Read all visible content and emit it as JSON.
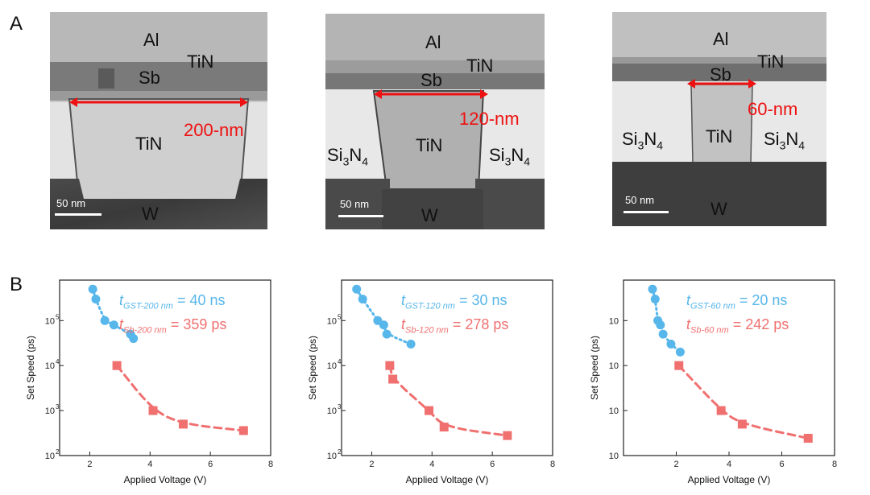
{
  "figure": {
    "label_a": "A",
    "label_b": "B",
    "tem_panels": [
      {
        "labels": {
          "al": "Al",
          "tin_top": "TiN",
          "sb": "Sb",
          "tin_mid": "TiN",
          "w": "W"
        },
        "width": "200-nm",
        "scale": "50 nm"
      },
      {
        "labels": {
          "al": "Al",
          "tin_top": "TiN",
          "sb": "Sb",
          "tin_mid": "TiN",
          "w": "W",
          "si_left": "Si",
          "si_right": "Si",
          "n_sym": "N",
          "sub3": "3",
          "sub4": "4"
        },
        "width": "120-nm",
        "scale": "50 nm"
      },
      {
        "labels": {
          "al": "Al",
          "tin_top": "TiN",
          "sb": "Sb",
          "tin_mid": "TiN",
          "w": "W",
          "si_left": "Si",
          "si_right": "Si",
          "n_sym": "N",
          "sub3": "3",
          "sub4": "4"
        },
        "width": "60-nm",
        "scale": "50 nm"
      }
    ]
  },
  "chart_data": [
    {
      "type": "scatter",
      "xlabel": "Applied Voltage (V)",
      "ylabel": "Set Speed (ps)",
      "x_ticks": [
        "2",
        "4",
        "6",
        "8"
      ],
      "y_ticks": [
        "10",
        "10",
        "10",
        "10",
        "10"
      ],
      "y_exps": [
        "2",
        "3",
        "4",
        "5",
        ""
      ],
      "xlim": [
        1,
        8
      ],
      "ylim_log10": [
        2,
        5.9
      ],
      "series": [
        {
          "name_sym": "t",
          "name_sub": "GST-200 nm",
          "value_text": "= 40 ns",
          "color": "#57b6ea",
          "marker": "circle",
          "x": [
            2.1,
            2.2,
            2.5,
            2.8,
            3.35,
            3.45
          ],
          "y": [
            500000,
            300000,
            100000,
            80000,
            50000,
            40000
          ]
        },
        {
          "name_sym": "t",
          "name_sub": "Sb-200 nm",
          "value_text": "= 359 ps",
          "color": "#f07070",
          "marker": "square",
          "x": [
            2.9,
            4.1,
            5.1,
            7.1
          ],
          "y": [
            10000,
            1000,
            500,
            359
          ]
        }
      ]
    },
    {
      "type": "scatter",
      "xlabel": "Applied Voltage (V)",
      "ylabel": "Set Speed (ps)",
      "x_ticks": [
        "2",
        "4",
        "6",
        "8"
      ],
      "y_ticks": [
        "10",
        "10",
        "10",
        "10",
        "10"
      ],
      "y_exps": [
        "2",
        "3",
        "4",
        "5",
        ""
      ],
      "xlim": [
        1,
        8
      ],
      "ylim_log10": [
        2,
        5.9
      ],
      "series": [
        {
          "name_sym": "t",
          "name_sub": "GST-120 nm",
          "value_text": "= 30 ns",
          "color": "#57b6ea",
          "marker": "circle",
          "x": [
            1.5,
            1.7,
            2.2,
            2.4,
            2.5,
            3.3
          ],
          "y": [
            500000,
            300000,
            100000,
            80000,
            50000,
            30000
          ]
        },
        {
          "name_sym": "t",
          "name_sub": "Sb-120 nm",
          "value_text": "= 278 ps",
          "color": "#f07070",
          "marker": "square",
          "x": [
            2.6,
            2.7,
            3.9,
            4.4,
            6.5
          ],
          "y": [
            10000,
            5000,
            1000,
            430,
            278
          ]
        }
      ]
    },
    {
      "type": "scatter",
      "xlabel": "Applied Voltage (V)",
      "ylabel": "Set Speed (ps)",
      "x_ticks": [
        "2",
        "4",
        "6",
        "8"
      ],
      "y_ticks": [
        "10",
        "10",
        "10",
        "10",
        "10"
      ],
      "y_exps": [
        "",
        "",
        "",
        "",
        ""
      ],
      "xlim": [
        0,
        8
      ],
      "ylim_log10": [
        2,
        5.9
      ],
      "series": [
        {
          "name_sym": "t",
          "name_sub": "GST-60 nm",
          "value_text": "= 20 ns",
          "color": "#57b6ea",
          "marker": "circle",
          "x": [
            1.1,
            1.2,
            1.3,
            1.4,
            1.5,
            1.8,
            2.15
          ],
          "y": [
            500000,
            300000,
            100000,
            80000,
            50000,
            30000,
            20000
          ]
        },
        {
          "name_sym": "t",
          "name_sub": "Sb-60 nm",
          "value_text": "= 242 ps",
          "color": "#f07070",
          "marker": "square",
          "x": [
            2.1,
            3.7,
            4.5,
            7.0
          ],
          "y": [
            10000,
            1000,
            500,
            242
          ]
        }
      ]
    }
  ]
}
